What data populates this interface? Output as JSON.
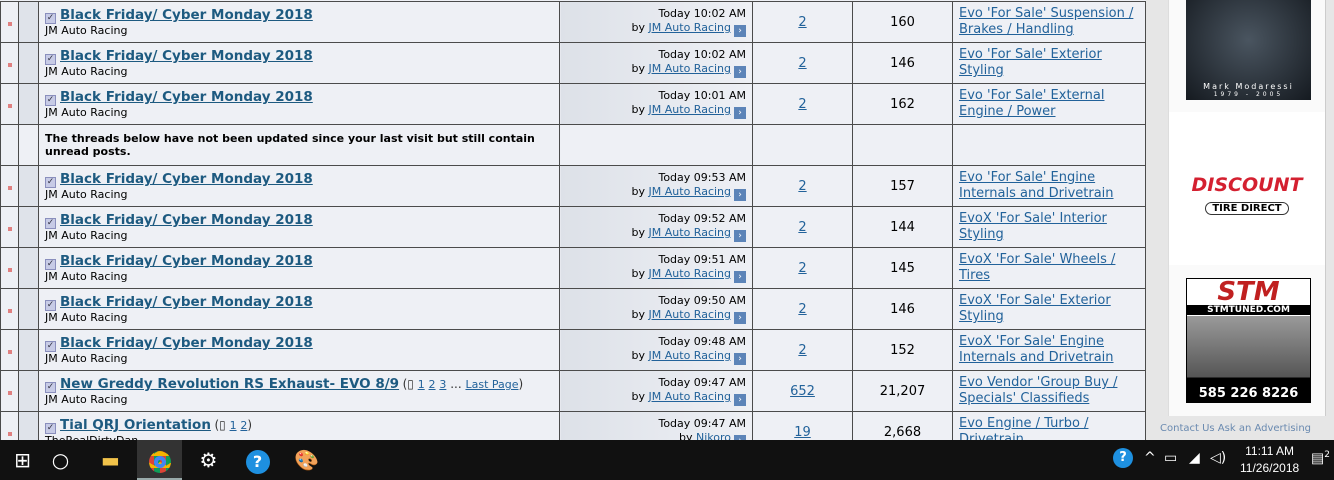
{
  "threads_before": [
    {
      "title": "Black Friday/ Cyber Monday 2018",
      "author": "JM Auto Racing",
      "last_time": "Today 10:02 AM",
      "last_by": "JM Auto Racing",
      "replies": "2",
      "views": "160",
      "forum": "Evo 'For Sale' Suspension / Brakes / Handling"
    },
    {
      "title": "Black Friday/ Cyber Monday 2018",
      "author": "JM Auto Racing",
      "last_time": "Today 10:02 AM",
      "last_by": "JM Auto Racing",
      "replies": "2",
      "views": "146",
      "forum": "Evo 'For Sale' Exterior Styling"
    },
    {
      "title": "Black Friday/ Cyber Monday 2018",
      "author": "JM Auto Racing",
      "last_time": "Today 10:01 AM",
      "last_by": "JM Auto Racing",
      "replies": "2",
      "views": "162",
      "forum": "Evo 'For Sale' External Engine / Power"
    }
  ],
  "separator_text": "The threads below have not been updated since your last visit but still contain unread posts.",
  "by_label": "by",
  "threads_after": [
    {
      "title": "Black Friday/ Cyber Monday 2018",
      "author": "JM Auto Racing",
      "last_time": "Today 09:53 AM",
      "last_by": "JM Auto Racing",
      "replies": "2",
      "views": "157",
      "forum": "Evo 'For Sale' Engine Internals and Drivetrain"
    },
    {
      "title": "Black Friday/ Cyber Monday 2018",
      "author": "JM Auto Racing",
      "last_time": "Today 09:52 AM",
      "last_by": "JM Auto Racing",
      "replies": "2",
      "views": "144",
      "forum": "EvoX 'For Sale' Interior Styling"
    },
    {
      "title": "Black Friday/ Cyber Monday 2018",
      "author": "JM Auto Racing",
      "last_time": "Today 09:51 AM",
      "last_by": "JM Auto Racing",
      "replies": "2",
      "views": "145",
      "forum": "EvoX 'For Sale' Wheels / Tires"
    },
    {
      "title": "Black Friday/ Cyber Monday 2018",
      "author": "JM Auto Racing",
      "last_time": "Today 09:50 AM",
      "last_by": "JM Auto Racing",
      "replies": "2",
      "views": "146",
      "forum": "EvoX 'For Sale' Exterior Styling"
    },
    {
      "title": "Black Friday/ Cyber Monday 2018",
      "author": "JM Auto Racing",
      "last_time": "Today 09:48 AM",
      "last_by": "JM Auto Racing",
      "replies": "2",
      "views": "152",
      "forum": "EvoX 'For Sale' Engine Internals and Drivetrain"
    },
    {
      "title": "New Greddy Revolution RS Exhaust- EVO 8/9",
      "author": "JM Auto Racing",
      "last_time": "Today 09:47 AM",
      "last_by": "JM Auto Racing",
      "replies": "652",
      "views": "21,207",
      "forum": "Evo Vendor 'Group Buy / Specials' Classifieds",
      "pages": [
        "1",
        "2",
        "3"
      ],
      "ellipsis": "...",
      "last_page": "Last Page"
    },
    {
      "title": "Tial QRJ Orientation",
      "author": "TheRealDirtyDan",
      "last_time": "Today 09:47 AM",
      "last_by": "Nikoro",
      "replies": "19",
      "views": "2,668",
      "forum": "Evo Engine / Turbo / Drivetrain",
      "pages": [
        "1",
        "2"
      ]
    }
  ],
  "sidebar": {
    "ad1_name": "Mark Modaressi",
    "ad1_years": "1979 - 2005",
    "ad2_line1": "DISCOUNT",
    "ad2_line2": "TIRE DIRECT",
    "ad3_logo": "STM",
    "ad3_url": "STMTUNED.COM",
    "ad3_phone": "585 226 8226",
    "bottom_link": "Contact Us  Ask an Advertising"
  },
  "taskbar": {
    "time": "11:11 AM",
    "date": "11/26/2018",
    "notifications": "2",
    "apps": [
      "start-icon",
      "cortana-icon",
      "file-explorer-icon",
      "chrome-icon",
      "settings-icon",
      "help-icon",
      "paint-icon"
    ]
  }
}
